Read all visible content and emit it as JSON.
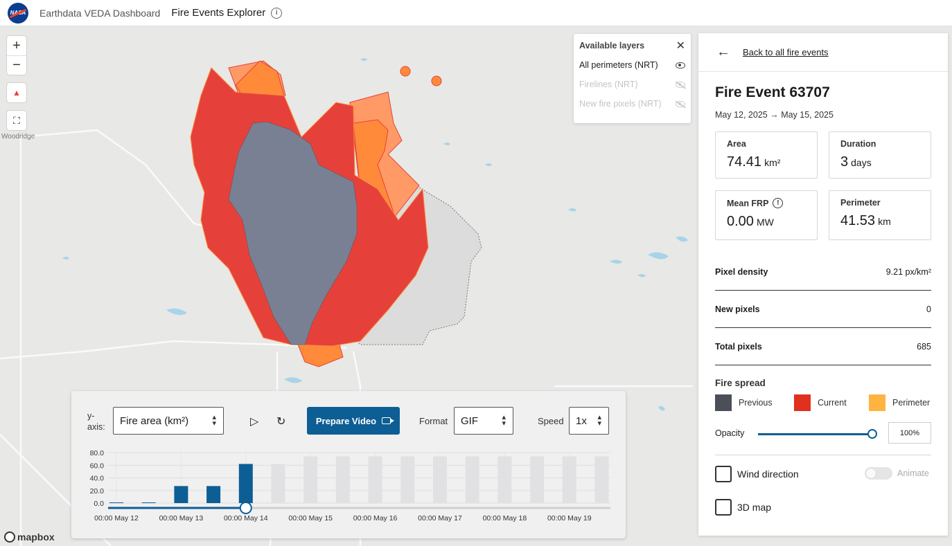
{
  "header": {
    "logo_text": "NASA",
    "brand": "Earthdata VEDA Dashboard",
    "title": "Fire Events Explorer"
  },
  "map": {
    "place_label": "Woodridge",
    "attribution": "mapbox",
    "colors": {
      "previous": "#7a8094",
      "current": "#e5413a",
      "perimeter": "#ff8a3a",
      "perimeter_light": "#ff9a66",
      "water": "#a8d4ea",
      "land": "#e8e8e6"
    }
  },
  "layers": {
    "title": "Available layers",
    "items": [
      {
        "label": "All perimeters (NRT)",
        "visible": true
      },
      {
        "label": "Firelines (NRT)",
        "visible": false
      },
      {
        "label": "New fire pixels (NRT)",
        "visible": false
      }
    ]
  },
  "timeline": {
    "yaxis_label": "y-axis:",
    "yaxis_value": "Fire area (km²)",
    "prepare_video": "Prepare Video",
    "format_label": "Format",
    "format_value": "GIF",
    "speed_label": "Speed",
    "speed_value": "1x"
  },
  "chart_data": {
    "type": "bar",
    "y_ticks": [
      "80.0",
      "60.0",
      "40.0",
      "20.0",
      "0.0"
    ],
    "ylim": [
      0,
      80
    ],
    "x_tick_labels": [
      "00:00 May 12",
      "00:00 May 13",
      "00:00 May 14",
      "00:00 May 15",
      "00:00 May 16",
      "00:00 May 17",
      "00:00 May 18",
      "00:00 May 19"
    ],
    "bars": [
      {
        "value": 0.5,
        "active": true
      },
      {
        "value": 0.5,
        "active": true
      },
      {
        "value": 27,
        "active": true
      },
      {
        "value": 27,
        "active": true
      },
      {
        "value": 62,
        "active": true
      },
      {
        "value": 62,
        "active": false
      },
      {
        "value": 74,
        "active": false
      },
      {
        "value": 74,
        "active": false
      },
      {
        "value": 74,
        "active": false
      },
      {
        "value": 74,
        "active": false
      },
      {
        "value": 74,
        "active": false
      },
      {
        "value": 74,
        "active": false
      },
      {
        "value": 74,
        "active": false
      },
      {
        "value": 74,
        "active": false
      },
      {
        "value": 74,
        "active": false
      },
      {
        "value": 74,
        "active": false
      }
    ],
    "active_color": "#0d5e94",
    "inactive_color": "#e1e1e3",
    "current_position": "00:00 May 14"
  },
  "panel": {
    "back_label": "Back to all fire events",
    "title": "Fire Event 63707",
    "dates": "May 12, 2025 → May 15, 2025",
    "cards": {
      "area": {
        "label": "Area",
        "value": "74.41",
        "unit": "km²"
      },
      "duration": {
        "label": "Duration",
        "value": "3",
        "unit": "days"
      },
      "frp": {
        "label": "Mean FRP",
        "value": "0.00",
        "unit": "MW"
      },
      "perimeter": {
        "label": "Perimeter",
        "value": "41.53",
        "unit": "km"
      }
    },
    "stats": [
      {
        "label": "Pixel density",
        "value": "9.21 px/km²"
      },
      {
        "label": "New pixels",
        "value": "0"
      },
      {
        "label": "Total pixels",
        "value": "685"
      }
    ],
    "spread": {
      "title": "Fire spread",
      "previous": "Previous",
      "current": "Current",
      "perimeter": "Perimeter",
      "colors": {
        "previous": "#4b4f58",
        "current": "#e0301e",
        "perimeter": "#ffb340"
      }
    },
    "opacity": {
      "label": "Opacity",
      "value": "100%"
    },
    "wind_label": "Wind direction",
    "animate_label": "Animate",
    "map3d_label": "3D map"
  }
}
